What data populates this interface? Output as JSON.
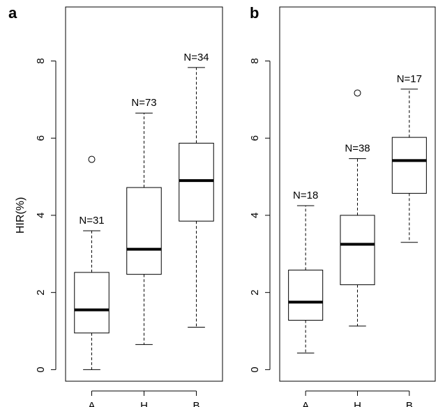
{
  "chart_data": [
    {
      "type": "box",
      "panel_label": "a",
      "ylabel": "HIR(%)",
      "ylim": [
        -0.3,
        9.4
      ],
      "yticks": [
        0,
        2,
        4,
        6,
        8
      ],
      "grid": false,
      "categories": [
        "A",
        "H",
        "B"
      ],
      "boxes": [
        {
          "category": "A",
          "n_label": "N=31",
          "whisker_low": 0.0,
          "q1": 0.95,
          "median": 1.55,
          "q3": 2.52,
          "whisker_high": 3.6,
          "outliers": [
            5.45
          ]
        },
        {
          "category": "H",
          "n_label": "N=73",
          "whisker_low": 0.65,
          "q1": 2.47,
          "median": 3.12,
          "q3": 4.72,
          "whisker_high": 6.65,
          "outliers": []
        },
        {
          "category": "B",
          "n_label": "N=34",
          "whisker_low": 1.1,
          "q1": 3.85,
          "median": 4.9,
          "q3": 5.87,
          "whisker_high": 7.83,
          "outliers": []
        }
      ]
    },
    {
      "type": "box",
      "panel_label": "b",
      "ylabel": "",
      "ylim": [
        -0.3,
        9.4
      ],
      "yticks": [
        0,
        2,
        4,
        6,
        8
      ],
      "grid": false,
      "categories": [
        "A",
        "H",
        "B"
      ],
      "boxes": [
        {
          "category": "A",
          "n_label": "N=18",
          "whisker_low": 0.43,
          "q1": 1.28,
          "median": 1.75,
          "q3": 2.58,
          "whisker_high": 4.25,
          "outliers": []
        },
        {
          "category": "H",
          "n_label": "N=38",
          "whisker_low": 1.13,
          "q1": 2.2,
          "median": 3.25,
          "q3": 4.0,
          "whisker_high": 5.47,
          "outliers": [
            7.17
          ]
        },
        {
          "category": "B",
          "n_label": "N=17",
          "whisker_low": 3.3,
          "q1": 4.57,
          "median": 5.42,
          "q3": 6.02,
          "whisker_high": 7.27,
          "outliers": []
        }
      ]
    }
  ]
}
